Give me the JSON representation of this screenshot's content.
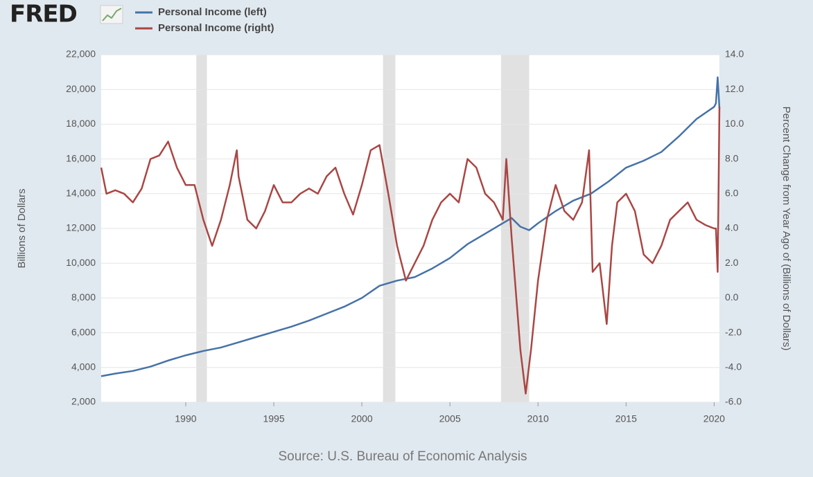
{
  "header": {
    "logo": "FRED"
  },
  "chart_data": {
    "type": "line",
    "source": "Source: U.S. Bureau of Economic Analysis",
    "y_label": "Billions of Dollars",
    "y2_label": "Percent Change from Year Ago of (Billions of Dollars)",
    "xlim": [
      1985.2,
      2020.3
    ],
    "xticks": [
      1990,
      1995,
      2000,
      2005,
      2010,
      2015,
      2020
    ],
    "ylim": [
      2000,
      22000
    ],
    "yticks": [
      {
        "value": 2000,
        "label": "2,000"
      },
      {
        "value": 4000,
        "label": "4,000"
      },
      {
        "value": 6000,
        "label": "6,000"
      },
      {
        "value": 8000,
        "label": "8,000"
      },
      {
        "value": 10000,
        "label": "10,000"
      },
      {
        "value": 12000,
        "label": "12,000"
      },
      {
        "value": 14000,
        "label": "14,000"
      },
      {
        "value": 16000,
        "label": "16,000"
      },
      {
        "value": 18000,
        "label": "18,000"
      },
      {
        "value": 20000,
        "label": "20,000"
      },
      {
        "value": 22000,
        "label": "22,000"
      }
    ],
    "y2lim": [
      -6,
      14
    ],
    "y2ticks": [
      {
        "value": -6,
        "label": "-6.0"
      },
      {
        "value": -4,
        "label": "-4.0"
      },
      {
        "value": -2,
        "label": "-2.0"
      },
      {
        "value": 0,
        "label": "0.0"
      },
      {
        "value": 2,
        "label": "2.0"
      },
      {
        "value": 4,
        "label": "4.0"
      },
      {
        "value": 6,
        "label": "6.0"
      },
      {
        "value": 8,
        "label": "8.0"
      },
      {
        "value": 10,
        "label": "10.0"
      },
      {
        "value": 12,
        "label": "12.0"
      },
      {
        "value": 14,
        "label": "14.0"
      }
    ],
    "grid": true,
    "recessions": [
      [
        1990.6,
        1991.2
      ],
      [
        2001.2,
        2001.9
      ],
      [
        2007.9,
        2009.5
      ]
    ],
    "recession_color": "#e1e1e1",
    "series": [
      {
        "name": "Personal Income (left)",
        "color": "#4572a7",
        "axis": "y",
        "x": [
          1985.2,
          1986,
          1987,
          1988,
          1989,
          1990,
          1991,
          1992,
          1993,
          1994,
          1995,
          1996,
          1997,
          1998,
          1999,
          2000,
          2001,
          2002,
          2003,
          2004,
          2005,
          2006,
          2007,
          2008,
          2008.5,
          2009,
          2009.5,
          2010,
          2011,
          2012,
          2013,
          2014,
          2015,
          2016,
          2017,
          2018,
          2019,
          2020,
          2020.1,
          2020.2,
          2020.3
        ],
        "values": [
          3500,
          3650,
          3800,
          4050,
          4400,
          4700,
          4950,
          5150,
          5450,
          5750,
          6050,
          6350,
          6700,
          7100,
          7500,
          8000,
          8700,
          9000,
          9200,
          9700,
          10300,
          11100,
          11700,
          12300,
          12600,
          12100,
          11900,
          12300,
          13000,
          13600,
          14000,
          14700,
          15500,
          15900,
          16400,
          17300,
          18300,
          19000,
          19200,
          20700,
          18900
        ]
      },
      {
        "name": "Personal Income (right)",
        "color": "#aa4643",
        "axis": "y2",
        "x": [
          1985.2,
          1985.5,
          1986,
          1986.5,
          1987,
          1987.5,
          1988,
          1988.5,
          1989,
          1989.5,
          1990,
          1990.5,
          1991,
          1991.5,
          1992,
          1992.5,
          1992.9,
          1993,
          1993.5,
          1994,
          1994.5,
          1995,
          1995.5,
          1996,
          1996.5,
          1997,
          1997.5,
          1998,
          1998.5,
          1999,
          1999.5,
          2000,
          2000.5,
          2001,
          2001.5,
          2002,
          2002.5,
          2003,
          2003.5,
          2004,
          2004.5,
          2005,
          2005.5,
          2006,
          2006.5,
          2007,
          2007.5,
          2008,
          2008.2,
          2008.5,
          2009,
          2009.3,
          2009.6,
          2010,
          2010.5,
          2011,
          2011.5,
          2012,
          2012.5,
          2012.9,
          2013.1,
          2013.5,
          2013.9,
          2014.2,
          2014.5,
          2015,
          2015.5,
          2016,
          2016.5,
          2017,
          2017.5,
          2018,
          2018.5,
          2019,
          2019.5,
          2020,
          2020.1,
          2020.2,
          2020.3
        ],
        "values": [
          7.5,
          6.0,
          6.2,
          6.0,
          5.5,
          6.3,
          8.0,
          8.2,
          9.0,
          7.5,
          6.5,
          6.5,
          4.5,
          3.0,
          4.5,
          6.5,
          8.5,
          7.0,
          4.5,
          4.0,
          5.0,
          6.5,
          5.5,
          5.5,
          6.0,
          6.3,
          6.0,
          7.0,
          7.5,
          6.0,
          4.8,
          6.5,
          8.5,
          8.8,
          6.0,
          3.0,
          1.0,
          2.0,
          3.0,
          4.5,
          5.5,
          6.0,
          5.5,
          8.0,
          7.5,
          6.0,
          5.5,
          4.5,
          8.0,
          3.5,
          -3.0,
          -5.5,
          -3.0,
          1.0,
          4.5,
          6.5,
          5.0,
          4.5,
          5.5,
          8.5,
          1.5,
          2.0,
          -1.5,
          3.0,
          5.5,
          6.0,
          5.0,
          2.5,
          2.0,
          3.0,
          4.5,
          5.0,
          5.5,
          4.5,
          4.2,
          4.0,
          4.0,
          1.5,
          11.0
        ]
      }
    ]
  }
}
